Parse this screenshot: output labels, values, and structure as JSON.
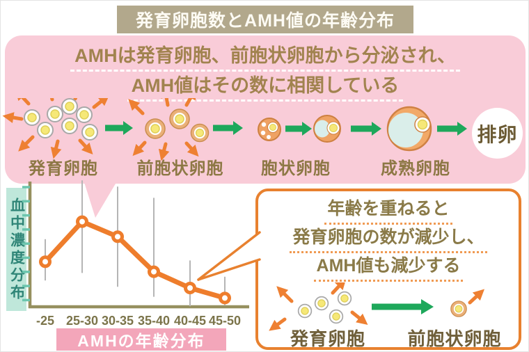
{
  "title": "発育卵胞数とAMH値の年齢分布",
  "panel": {
    "heading_line1": "AMHは発育卵胞、前胞状卵胞から分泌され、",
    "heading_line2": "AMH値はその数に相関している",
    "stages": [
      {
        "label": "発育卵胞",
        "icon": "developing-follicles-icon"
      },
      {
        "label": "前胞状卵胞",
        "icon": "preantral-follicles-icon"
      },
      {
        "label": "胞状卵胞",
        "icon": "antral-follicle-icon"
      },
      {
        "label": "成熟卵胞",
        "icon": "mature-follicle-icon"
      }
    ],
    "final_label": "排卵"
  },
  "chart_data": {
    "type": "line",
    "title": "AMHの年齢分布",
    "ylabel": "血中濃度分布",
    "xlabel": "",
    "categories": [
      "-25",
      "25-30",
      "30-35",
      "35-40",
      "40-45",
      "45-50"
    ],
    "values": [
      3.6,
      6.8,
      5.6,
      2.8,
      1.5,
      0.7
    ],
    "error_ranges": [
      [
        2.1,
        5.4
      ],
      [
        2.7,
        10.1
      ],
      [
        1.6,
        9.6
      ],
      [
        0.8,
        8.7
      ],
      [
        0.05,
        3.7
      ],
      [
        0.1,
        2.4
      ]
    ],
    "ylim": [
      0,
      10
    ],
    "y_ticks_unlabeled": 9,
    "grid": false,
    "legend": null,
    "marker": "open-circle",
    "line_color": "#ee7d2c",
    "error_bar_color": "#b5b5b5"
  },
  "callout": {
    "line1": "年齢を重ねると",
    "line2": "発育卵胞の数が減少し、",
    "line3": "AMH値も減少する",
    "label_left": "発育卵胞",
    "label_right": "前胞状卵胞"
  },
  "colors": {
    "title_bar_bg": "#b2a88c",
    "panel_bg": "#f9ccd8",
    "panel_heading_text": "#a1834f",
    "stage_label_text": "#8d7845",
    "green_arrow": "#1ea85b",
    "orange_arrow": "#ee8032",
    "follicle_yellow": "#f6e878",
    "axis": "#96905f",
    "axis_tick": "#6cc6ae",
    "ylabel_box_bg": "#bfe7da",
    "ylabel_text": "#2f8577",
    "chart_title_box_bg": "#f3a6ba",
    "callout_border": "#e8812f",
    "callout_text": "#8a7a48",
    "callout_label_text": "#6f5f3a"
  }
}
